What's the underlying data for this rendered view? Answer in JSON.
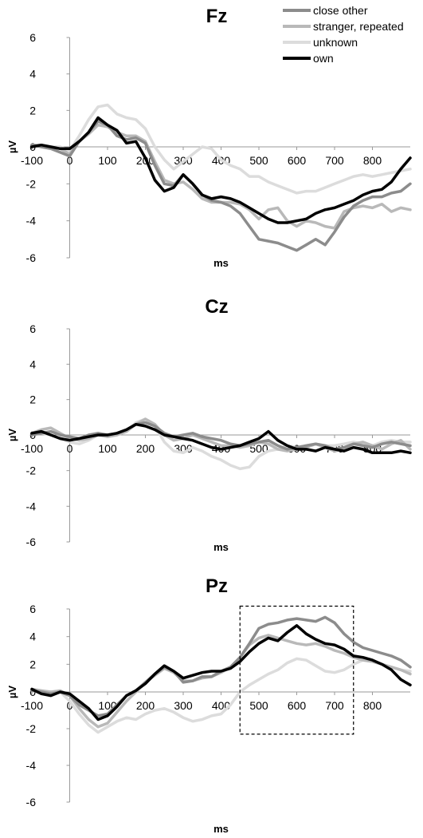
{
  "legend": [
    {
      "name": "close other",
      "color": "#8c8c8c"
    },
    {
      "name": "stranger, repeated",
      "color": "#b9b9b9"
    },
    {
      "name": "unknown",
      "color": "#dcdcdc"
    },
    {
      "name": "own",
      "color": "#000000"
    }
  ],
  "chart_data": [
    {
      "type": "line",
      "title": "Fz",
      "xlabel": "ms",
      "ylabel": "µV",
      "xlim": [
        -100,
        900
      ],
      "ylim": [
        -6,
        6
      ],
      "xticks": [
        -100,
        0,
        100,
        200,
        300,
        400,
        500,
        600,
        700,
        800
      ],
      "yticks": [
        6,
        4,
        2,
        0,
        -2,
        -4,
        -6
      ],
      "x": [
        -100,
        -75,
        -50,
        -25,
        0,
        25,
        50,
        75,
        100,
        125,
        150,
        175,
        200,
        225,
        250,
        275,
        300,
        325,
        350,
        375,
        400,
        425,
        450,
        475,
        500,
        525,
        550,
        575,
        600,
        625,
        650,
        675,
        700,
        725,
        750,
        775,
        800,
        825,
        850,
        875,
        900
      ],
      "series": [
        {
          "name": "close other",
          "color": "#8c8c8c",
          "values": [
            0.1,
            0.0,
            -0.1,
            -0.3,
            -0.5,
            0.3,
            0.8,
            1.4,
            1.2,
            0.6,
            0.4,
            0.5,
            0.2,
            -1.0,
            -2.0,
            -2.1,
            -1.5,
            -2.0,
            -2.6,
            -2.9,
            -3.0,
            -3.2,
            -3.6,
            -4.3,
            -5.0,
            -5.1,
            -5.2,
            -5.4,
            -5.6,
            -5.3,
            -5.0,
            -5.3,
            -4.6,
            -3.8,
            -3.2,
            -2.9,
            -2.7,
            -2.7,
            -2.5,
            -2.4,
            -2.0
          ]
        },
        {
          "name": "stranger, repeated",
          "color": "#b9b9b9",
          "values": [
            0.1,
            0.1,
            0.0,
            -0.1,
            -0.4,
            0.3,
            0.7,
            1.2,
            1.1,
            0.8,
            0.6,
            0.6,
            0.3,
            -0.8,
            -1.8,
            -2.0,
            -1.9,
            -2.3,
            -2.8,
            -3.0,
            -3.0,
            -3.0,
            -3.1,
            -3.4,
            -3.9,
            -3.4,
            -3.3,
            -4.0,
            -4.3,
            -4.0,
            -4.1,
            -4.3,
            -4.4,
            -3.5,
            -3.3,
            -3.2,
            -3.3,
            -3.1,
            -3.5,
            -3.3,
            -3.4
          ]
        },
        {
          "name": "unknown",
          "color": "#dcdcdc",
          "values": [
            0.1,
            0.1,
            0.0,
            0.0,
            -0.2,
            0.6,
            1.5,
            2.2,
            2.3,
            1.8,
            1.6,
            1.5,
            1.0,
            0.0,
            -0.7,
            -1.2,
            -0.8,
            -0.4,
            0.0,
            -0.1,
            -0.7,
            -1.0,
            -1.2,
            -1.6,
            -1.6,
            -1.9,
            -2.1,
            -2.3,
            -2.5,
            -2.4,
            -2.4,
            -2.2,
            -2.0,
            -1.8,
            -1.6,
            -1.5,
            -1.6,
            -1.5,
            -1.4,
            -1.3,
            -1.2
          ]
        },
        {
          "name": "own",
          "color": "#000000",
          "values": [
            0.0,
            0.1,
            0.0,
            -0.1,
            -0.1,
            0.3,
            0.8,
            1.6,
            1.2,
            0.9,
            0.2,
            0.3,
            -0.6,
            -1.8,
            -2.4,
            -2.2,
            -1.5,
            -2.0,
            -2.6,
            -2.8,
            -2.7,
            -2.8,
            -3.0,
            -3.3,
            -3.6,
            -3.9,
            -4.1,
            -4.1,
            -4.0,
            -3.9,
            -3.6,
            -3.4,
            -3.3,
            -3.1,
            -2.9,
            -2.6,
            -2.4,
            -2.3,
            -1.9,
            -1.2,
            -0.6
          ]
        }
      ]
    },
    {
      "type": "line",
      "title": "Cz",
      "xlabel": "ms",
      "ylabel": "µV",
      "xlim": [
        -100,
        900
      ],
      "ylim": [
        -6,
        6
      ],
      "xticks": [
        -100,
        0,
        100,
        200,
        300,
        400,
        500,
        600,
        700,
        800
      ],
      "yticks": [
        6,
        4,
        2,
        0,
        -2,
        -4,
        -6
      ],
      "x": [
        -100,
        -75,
        -50,
        -25,
        0,
        25,
        50,
        75,
        100,
        125,
        150,
        175,
        200,
        225,
        250,
        275,
        300,
        325,
        350,
        375,
        400,
        425,
        450,
        475,
        500,
        525,
        550,
        575,
        600,
        625,
        650,
        675,
        700,
        725,
        750,
        775,
        800,
        825,
        850,
        875,
        900
      ],
      "series": [
        {
          "name": "close other",
          "color": "#8c8c8c",
          "values": [
            0.0,
            0.1,
            0.2,
            0.0,
            -0.1,
            -0.2,
            0.0,
            0.1,
            0.0,
            0.1,
            0.3,
            0.6,
            0.7,
            0.5,
            0.1,
            -0.1,
            0.0,
            0.1,
            -0.1,
            -0.2,
            -0.3,
            -0.5,
            -0.6,
            -0.5,
            -0.4,
            -0.3,
            -0.6,
            -0.8,
            -0.7,
            -0.6,
            -0.5,
            -0.6,
            -0.8,
            -0.7,
            -0.5,
            -0.6,
            -0.7,
            -0.5,
            -0.4,
            -0.5,
            -0.6
          ]
        },
        {
          "name": "stranger, repeated",
          "color": "#b9b9b9",
          "values": [
            0.1,
            0.3,
            0.4,
            0.1,
            -0.2,
            -0.3,
            -0.2,
            0.0,
            -0.1,
            0.0,
            0.2,
            0.6,
            0.9,
            0.6,
            0.0,
            -0.3,
            -0.2,
            0.0,
            -0.2,
            -0.4,
            -0.6,
            -0.6,
            -0.7,
            -0.6,
            -0.4,
            -0.5,
            -0.8,
            -0.9,
            -0.8,
            -0.7,
            -0.5,
            -0.7,
            -0.9,
            -0.8,
            -0.5,
            -0.4,
            -0.6,
            -0.8,
            -0.5,
            -0.3,
            -0.8
          ]
        },
        {
          "name": "unknown",
          "color": "#dcdcdc",
          "values": [
            0.1,
            0.1,
            0.0,
            -0.2,
            -0.4,
            -0.5,
            -0.3,
            0.0,
            -0.1,
            0.0,
            0.2,
            0.7,
            0.9,
            0.5,
            -0.4,
            -0.9,
            -1.0,
            -0.7,
            -0.9,
            -1.2,
            -1.4,
            -1.7,
            -1.9,
            -1.8,
            -1.2,
            -0.9,
            -0.8,
            -0.6,
            -0.7,
            -0.6,
            -0.5,
            -0.6,
            -0.6,
            -0.5,
            -0.4,
            -0.5,
            -0.6,
            -0.4,
            -0.3,
            -0.4,
            -0.4
          ]
        },
        {
          "name": "own",
          "color": "#000000",
          "values": [
            0.1,
            0.2,
            0.0,
            -0.2,
            -0.3,
            -0.2,
            -0.1,
            0.0,
            0.0,
            0.1,
            0.3,
            0.6,
            0.5,
            0.3,
            0.0,
            -0.1,
            -0.2,
            -0.3,
            -0.5,
            -0.7,
            -0.8,
            -0.7,
            -0.6,
            -0.4,
            -0.2,
            0.2,
            -0.3,
            -0.6,
            -0.8,
            -0.8,
            -0.9,
            -0.7,
            -0.8,
            -0.9,
            -0.7,
            -0.8,
            -1.0,
            -1.0,
            -1.0,
            -0.9,
            -1.0
          ]
        }
      ]
    },
    {
      "type": "line",
      "title": "Pz",
      "xlabel": "ms",
      "ylabel": "µV",
      "xlim": [
        -100,
        900
      ],
      "ylim": [
        -6,
        6
      ],
      "xticks": [
        -100,
        0,
        100,
        200,
        300,
        400,
        500,
        600,
        700,
        800
      ],
      "yticks": [
        6,
        4,
        2,
        0,
        -2,
        -4,
        -6
      ],
      "highlight_x": [
        450,
        750
      ],
      "highlight_y": [
        -2.3,
        6.2
      ],
      "x": [
        -100,
        -75,
        -50,
        -25,
        0,
        25,
        50,
        75,
        100,
        125,
        150,
        175,
        200,
        225,
        250,
        275,
        300,
        325,
        350,
        375,
        400,
        425,
        450,
        475,
        500,
        525,
        550,
        575,
        600,
        625,
        650,
        675,
        700,
        725,
        750,
        775,
        800,
        825,
        850,
        875,
        900
      ],
      "series": [
        {
          "name": "close other",
          "color": "#8c8c8c",
          "values": [
            0.1,
            0.0,
            -0.1,
            0.0,
            -0.2,
            -0.7,
            -1.0,
            -1.3,
            -1.2,
            -0.7,
            -0.2,
            0.1,
            0.7,
            1.3,
            1.8,
            1.5,
            0.7,
            0.8,
            1.1,
            1.1,
            1.5,
            1.8,
            2.5,
            3.5,
            4.6,
            4.9,
            5.0,
            5.2,
            5.3,
            5.2,
            5.1,
            5.4,
            5.0,
            4.2,
            3.6,
            3.2,
            3.0,
            2.8,
            2.6,
            2.3,
            1.8
          ]
        },
        {
          "name": "stranger, repeated",
          "color": "#b9b9b9",
          "values": [
            0.2,
            0.1,
            0.0,
            0.1,
            -0.2,
            -0.9,
            -1.5,
            -1.9,
            -1.7,
            -1.1,
            -0.5,
            0.0,
            0.7,
            1.2,
            1.7,
            1.4,
            0.8,
            0.8,
            1.0,
            1.1,
            1.4,
            1.8,
            2.5,
            3.4,
            3.9,
            4.1,
            3.9,
            3.7,
            3.5,
            3.4,
            3.5,
            3.3,
            3.0,
            2.8,
            2.5,
            2.3,
            2.2,
            2.0,
            1.8,
            1.6,
            1.3
          ]
        },
        {
          "name": "unknown",
          "color": "#dcdcdc",
          "values": [
            0.1,
            0.0,
            -0.1,
            0.0,
            -0.5,
            -1.2,
            -1.8,
            -2.2,
            -1.9,
            -1.6,
            -1.4,
            -1.5,
            -1.2,
            -1.0,
            -0.9,
            -1.1,
            -1.4,
            -1.6,
            -1.5,
            -1.3,
            -1.2,
            -0.7,
            0.0,
            0.5,
            0.9,
            1.3,
            1.6,
            2.1,
            2.4,
            2.3,
            1.9,
            1.5,
            1.4,
            1.6,
            2.0,
            2.3,
            2.2,
            2.0,
            1.8,
            1.6,
            1.5
          ]
        },
        {
          "name": "own",
          "color": "#000000",
          "values": [
            0.2,
            -0.1,
            -0.2,
            0.0,
            -0.1,
            -0.5,
            -0.9,
            -1.5,
            -1.3,
            -0.8,
            -0.2,
            0.1,
            0.6,
            1.3,
            1.9,
            1.5,
            1.0,
            1.2,
            1.4,
            1.5,
            1.5,
            1.7,
            2.2,
            2.9,
            3.5,
            3.9,
            3.7,
            4.3,
            4.8,
            4.2,
            3.8,
            3.5,
            3.4,
            3.1,
            2.6,
            2.5,
            2.3,
            2.0,
            1.6,
            0.9,
            0.5
          ]
        }
      ]
    }
  ]
}
